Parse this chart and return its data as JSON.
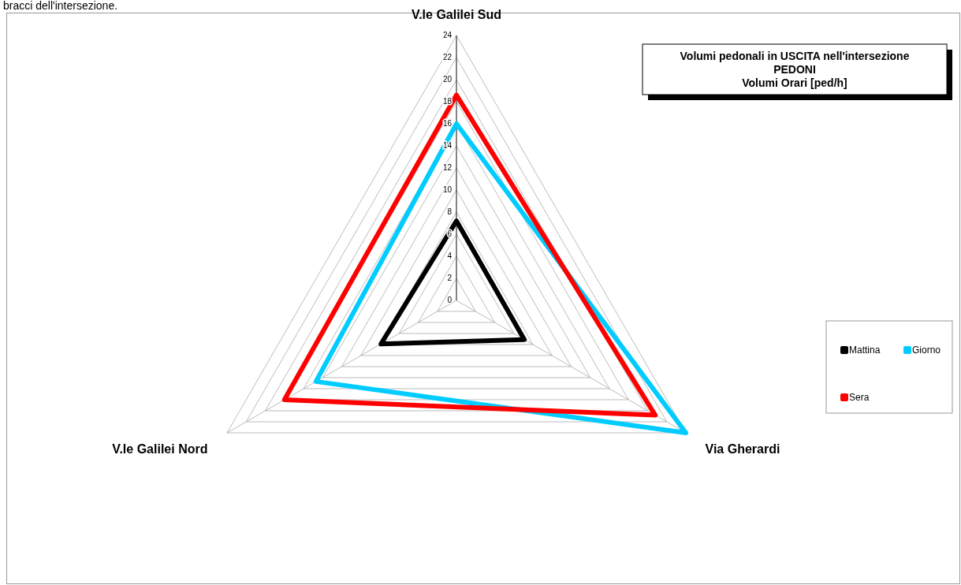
{
  "chart_data": {
    "type": "radar",
    "title": "Volumi pedonali in USCITA nell'intersezione\nPEDONI\nVolumi Orari [ped/h]",
    "annotations": [
      "bracci dell'intersezione."
    ],
    "categories": [
      "V.le Galilei Sud",
      "Via Gherardi",
      "V.le Galilei Nord"
    ],
    "series": [
      {
        "name": "Mattina",
        "color": "#000000",
        "values": [
          7.2,
          7.1,
          7.9
        ]
      },
      {
        "name": "Giorno",
        "color": "#00ccff",
        "values": [
          16,
          24,
          14.7
        ]
      },
      {
        "name": "Sera",
        "color": "#ff0000",
        "values": [
          18.6,
          20.8,
          18
        ]
      }
    ],
    "ylim": [
      0,
      24
    ],
    "yticks": [
      0,
      2,
      4,
      6,
      8,
      10,
      12,
      14,
      16,
      18,
      20,
      22,
      24
    ],
    "grid": true,
    "legend": "right",
    "marker": "none",
    "line_style": "solid"
  }
}
